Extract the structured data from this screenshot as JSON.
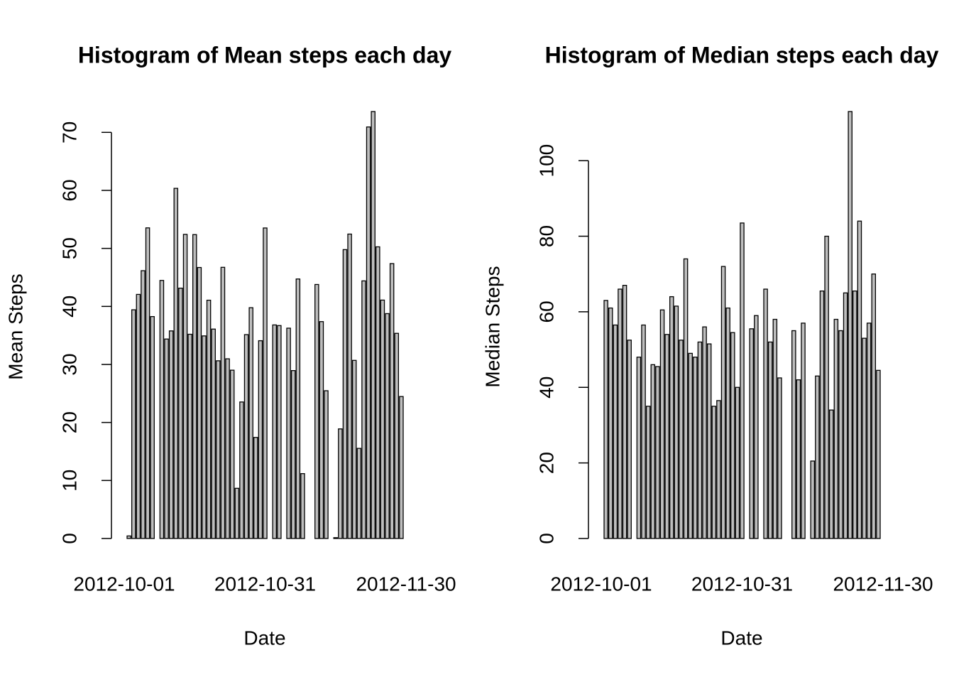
{
  "chart_data": [
    {
      "type": "bar",
      "title": "Histogram of Mean steps each day",
      "xlabel": "Date",
      "ylabel": "Mean Steps",
      "color": "#bebebe",
      "x": [
        "2012-10-01",
        "2012-10-02",
        "2012-10-03",
        "2012-10-04",
        "2012-10-05",
        "2012-10-06",
        "2012-10-07",
        "2012-10-08",
        "2012-10-09",
        "2012-10-10",
        "2012-10-11",
        "2012-10-12",
        "2012-10-13",
        "2012-10-14",
        "2012-10-15",
        "2012-10-16",
        "2012-10-17",
        "2012-10-18",
        "2012-10-19",
        "2012-10-20",
        "2012-10-21",
        "2012-10-22",
        "2012-10-23",
        "2012-10-24",
        "2012-10-25",
        "2012-10-26",
        "2012-10-27",
        "2012-10-28",
        "2012-10-29",
        "2012-10-30",
        "2012-10-31",
        "2012-11-01",
        "2012-11-02",
        "2012-11-03",
        "2012-11-04",
        "2012-11-05",
        "2012-11-06",
        "2012-11-07",
        "2012-11-08",
        "2012-11-09",
        "2012-11-10",
        "2012-11-11",
        "2012-11-12",
        "2012-11-13",
        "2012-11-14",
        "2012-11-15",
        "2012-11-16",
        "2012-11-17",
        "2012-11-18",
        "2012-11-19",
        "2012-11-20",
        "2012-11-21",
        "2012-11-22",
        "2012-11-23",
        "2012-11-24",
        "2012-11-25",
        "2012-11-26",
        "2012-11-27",
        "2012-11-28",
        "2012-11-29",
        "2012-11-30"
      ],
      "values": [
        null,
        0.44,
        39.42,
        42.07,
        46.16,
        53.54,
        38.25,
        null,
        44.48,
        34.38,
        35.78,
        60.35,
        43.15,
        52.42,
        35.2,
        52.38,
        46.71,
        34.92,
        41.07,
        36.09,
        30.63,
        46.74,
        30.97,
        29.01,
        8.65,
        23.53,
        35.14,
        39.78,
        17.42,
        34.09,
        53.52,
        null,
        36.81,
        36.7,
        null,
        36.25,
        28.94,
        44.73,
        11.18,
        null,
        null,
        43.78,
        37.38,
        25.47,
        null,
        0.14,
        18.89,
        49.79,
        52.47,
        30.7,
        15.53,
        44.4,
        70.93,
        73.59,
        50.27,
        41.09,
        38.76,
        47.38,
        35.36,
        24.47,
        null
      ],
      "xticks": [
        "2012-10-01",
        "2012-10-31",
        "2012-11-30"
      ],
      "ylim": [
        0,
        73.59
      ],
      "yticks": [
        0,
        10,
        20,
        30,
        40,
        50,
        60,
        70
      ]
    },
    {
      "type": "bar",
      "title": "Histogram of Median steps each day",
      "xlabel": "Date",
      "ylabel": "Median Steps",
      "color": "#bebebe",
      "x": [
        "2012-10-01",
        "2012-10-02",
        "2012-10-03",
        "2012-10-04",
        "2012-10-05",
        "2012-10-06",
        "2012-10-07",
        "2012-10-08",
        "2012-10-09",
        "2012-10-10",
        "2012-10-11",
        "2012-10-12",
        "2012-10-13",
        "2012-10-14",
        "2012-10-15",
        "2012-10-16",
        "2012-10-17",
        "2012-10-18",
        "2012-10-19",
        "2012-10-20",
        "2012-10-21",
        "2012-10-22",
        "2012-10-23",
        "2012-10-24",
        "2012-10-25",
        "2012-10-26",
        "2012-10-27",
        "2012-10-28",
        "2012-10-29",
        "2012-10-30",
        "2012-10-31",
        "2012-11-01",
        "2012-11-02",
        "2012-11-03",
        "2012-11-04",
        "2012-11-05",
        "2012-11-06",
        "2012-11-07",
        "2012-11-08",
        "2012-11-09",
        "2012-11-10",
        "2012-11-11",
        "2012-11-12",
        "2012-11-13",
        "2012-11-14",
        "2012-11-15",
        "2012-11-16",
        "2012-11-17",
        "2012-11-18",
        "2012-11-19",
        "2012-11-20",
        "2012-11-21",
        "2012-11-22",
        "2012-11-23",
        "2012-11-24",
        "2012-11-25",
        "2012-11-26",
        "2012-11-27",
        "2012-11-28",
        "2012-11-29",
        "2012-11-30"
      ],
      "values": [
        null,
        63,
        61,
        56.5,
        66,
        67,
        52.5,
        null,
        48,
        56.5,
        35,
        46,
        45.5,
        60.5,
        54,
        64,
        61.5,
        52.5,
        74,
        49,
        48,
        52,
        56,
        51.5,
        35,
        36.5,
        72,
        61,
        54.5,
        40,
        83.5,
        null,
        55.5,
        59,
        null,
        66,
        52,
        58,
        42.5,
        null,
        null,
        55,
        42,
        57,
        null,
        20.5,
        43,
        65.5,
        80,
        34,
        58,
        55,
        65,
        113,
        65.5,
        84,
        53,
        57,
        70,
        44.5,
        null
      ],
      "xticks": [
        "2012-10-01",
        "2012-10-31",
        "2012-11-30"
      ],
      "ylim": [
        0,
        113
      ],
      "yticks": [
        0,
        20,
        40,
        60,
        80,
        100
      ]
    }
  ]
}
